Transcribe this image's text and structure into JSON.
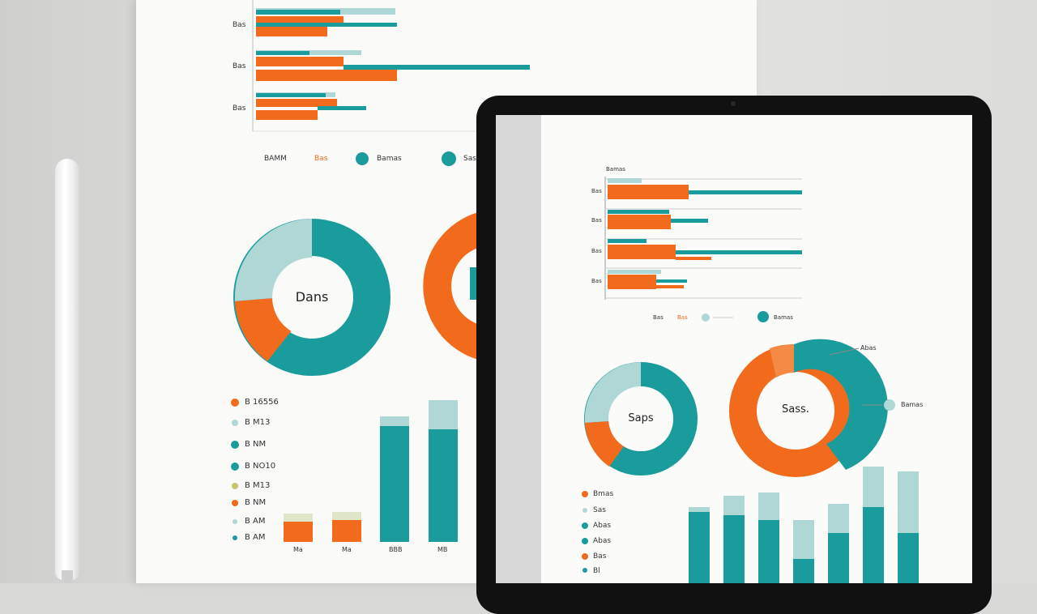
{
  "colors": {
    "orange": "#f26b1d",
    "teal": "#1a9c9c",
    "light_teal": "#aed7d6",
    "paper": "#fafaf9"
  },
  "paper": {
    "hbar_labels": [
      "Bas",
      "Bas",
      "Bas"
    ],
    "legend": [
      "BAMM",
      "Bas",
      "Bamas",
      "Sas"
    ],
    "donut_center": "Dans",
    "list": [
      "B 16556",
      "B M13",
      "B NM",
      "B NO10",
      "B M13",
      "B NM",
      "B AM",
      "B AM"
    ],
    "bar_labels": [
      "Ma",
      "Ma",
      "BBB",
      "MB"
    ]
  },
  "tablet": {
    "hbar_labels": [
      "Bamas",
      "Bas",
      "Bas",
      "Bas",
      "Bas"
    ],
    "legend": [
      "Bas",
      "Bas",
      "Bamas"
    ],
    "donut1_center": "Saps",
    "donut2_center": "Sass.",
    "donut2_callouts": [
      "Abas",
      "Bamas"
    ],
    "list": [
      "Bmas",
      "Sas",
      "Abas",
      "Abas",
      "Bas",
      "Bl"
    ]
  }
}
